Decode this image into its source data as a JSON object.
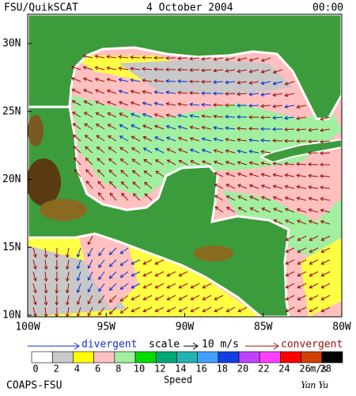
{
  "header": {
    "source": "FSU/QuikSCAT",
    "date": "4 October 2004",
    "time": "00:00"
  },
  "map": {
    "lat_labels": [
      "30N",
      "25N",
      "20N",
      "15N",
      "10N"
    ],
    "lon_labels": [
      "100W",
      "95W",
      "90W",
      "85W",
      "80W"
    ]
  },
  "legend": {
    "divergent": "divergent",
    "scale": "scale",
    "scale_value": "10 m/s",
    "convergent": "convergent",
    "colorbar": {
      "ticks": [
        0,
        2,
        4,
        6,
        8,
        10,
        12,
        14,
        16,
        18,
        20,
        22,
        24,
        26,
        28
      ],
      "colors": [
        "#ffffff",
        "#c8c8c8",
        "#ffff00",
        "#ffc0c0",
        "#a0f0a0",
        "#00dc00",
        "#00a878",
        "#20b4b4",
        "#40a0ff",
        "#1040e0",
        "#c040ff",
        "#ff40ff",
        "#ff0000",
        "#d04000",
        "#000000"
      ],
      "unit": "m/s",
      "label": "Speed"
    }
  },
  "footer": {
    "org": "COAPS-FSU",
    "author": "Yan Yu"
  }
}
